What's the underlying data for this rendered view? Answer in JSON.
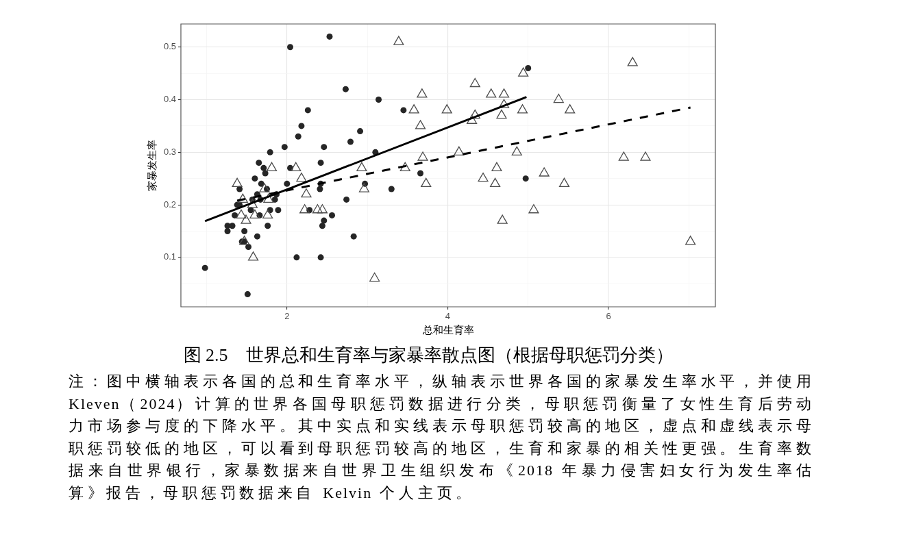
{
  "chart_data": {
    "type": "scatter",
    "title": "图 2.5　世界总和生育率与家暴率散点图（根据母职惩罚分类）",
    "xlabel": "总和生育率",
    "ylabel": "家暴发生率",
    "annotations": [
      "注：图中横轴表示各国的总和生育率水平，纵轴表示世界各国的家暴发生率水平，并使用Kleven（2024）计算的世界各国母职惩罚数据进行分类，母职惩罚衡量了女性生育后劳动力市场参与度的下降水平。其中实点和实线表示母职惩罚较高的地区，虚点和虚线表示母职惩罚较低的地区，可以看到母职惩罚较高的地区，生育和家暴的相关性更强。生育率数据来自世界银行，家暴数据来自世界卫生组织发布《2018 年暴力侵害妇女行为发生率估算》报告，母职惩罚数据来自 Kelvin 个人主页。"
    ],
    "xlim": [
      0.68,
      7.33
    ],
    "ylim": [
      0.006,
      0.544
    ],
    "xticks": [
      {
        "value": 1,
        "label": null
      },
      2,
      {
        "value": 3,
        "label": null
      },
      4,
      {
        "value": 5,
        "label": null
      },
      6,
      {
        "value": 7,
        "label": null
      }
    ],
    "yticks": [
      {
        "value": 0.05,
        "label": null
      },
      0.1,
      {
        "value": 0.15,
        "label": null
      },
      0.2,
      {
        "value": 0.25,
        "label": null
      },
      0.3,
      {
        "value": 0.35,
        "label": null
      },
      0.4,
      {
        "value": 0.45,
        "label": null
      },
      0.5
    ],
    "grid": true,
    "series": [
      {
        "type": "scatter",
        "color": "#262626",
        "marker": "circle",
        "x": [
          2.04,
          2.53,
          2.26,
          2.18,
          2.14,
          1.97,
          2.46,
          1.79,
          2.79,
          1.65,
          2.42,
          1.71,
          2.04,
          1.73,
          1.6,
          1.68,
          2.0,
          2.42,
          1.41,
          1.75,
          2.41,
          1.63,
          1.87,
          1.57,
          1.67,
          1.85,
          2.74,
          1.38,
          1.41,
          1.55,
          1.79,
          1.89,
          2.28,
          1.35,
          1.66,
          2.56,
          2.46,
          1.26,
          1.32,
          1.76,
          2.44,
          1.26,
          1.47,
          1.63,
          2.83,
          1.44,
          1.47,
          1.52,
          2.12,
          2.42,
          0.98,
          1.51,
          2.73,
          3.14,
          3.45,
          2.91,
          3.1,
          3.66,
          2.97,
          3.3,
          5.0,
          4.97
        ],
        "values": [
          0.5,
          0.52,
          0.38,
          0.35,
          0.33,
          0.31,
          0.31,
          0.3,
          0.32,
          0.28,
          0.28,
          0.27,
          0.27,
          0.26,
          0.25,
          0.24,
          0.24,
          0.24,
          0.23,
          0.23,
          0.23,
          0.22,
          0.22,
          0.21,
          0.21,
          0.21,
          0.21,
          0.2,
          0.2,
          0.19,
          0.19,
          0.19,
          0.19,
          0.18,
          0.18,
          0.18,
          0.17,
          0.16,
          0.16,
          0.16,
          0.16,
          0.15,
          0.15,
          0.14,
          0.14,
          0.13,
          0.13,
          0.12,
          0.1,
          0.1,
          0.08,
          0.03,
          0.42,
          0.4,
          0.38,
          0.34,
          0.3,
          0.26,
          0.24,
          0.23,
          0.46,
          0.25
        ]
      },
      {
        "type": "scatter",
        "color": "#4d4d4d",
        "marker": "triangle",
        "x": [
          1.81,
          2.11,
          2.18,
          2.24,
          1.38,
          1.72,
          1.45,
          1.77,
          1.57,
          1.43,
          1.6,
          1.76,
          1.49,
          2.22,
          2.38,
          2.44,
          1.58,
          1.47,
          3.39,
          4.34,
          4.94,
          3.68,
          4.54,
          4.7,
          3.58,
          3.99,
          4.93,
          4.7,
          4.34,
          4.67,
          4.3,
          3.66,
          4.14,
          4.86,
          3.69,
          2.93,
          3.47,
          4.61,
          4.44,
          3.73,
          4.59,
          2.96,
          4.68,
          3.09,
          5.38,
          5.52,
          6.3,
          6.19,
          6.46,
          5.2,
          5.45,
          5.07,
          7.02
        ],
        "values": [
          0.27,
          0.27,
          0.25,
          0.22,
          0.24,
          0.23,
          0.21,
          0.21,
          0.2,
          0.18,
          0.18,
          0.18,
          0.17,
          0.19,
          0.19,
          0.19,
          0.1,
          0.13,
          0.51,
          0.43,
          0.45,
          0.41,
          0.41,
          0.41,
          0.38,
          0.38,
          0.38,
          0.39,
          0.37,
          0.37,
          0.36,
          0.35,
          0.3,
          0.3,
          0.29,
          0.27,
          0.27,
          0.27,
          0.25,
          0.24,
          0.24,
          0.23,
          0.17,
          0.06,
          0.4,
          0.38,
          0.47,
          0.29,
          0.29,
          0.26,
          0.24,
          0.19,
          0.13
        ]
      },
      {
        "type": "line",
        "color": "#000000",
        "marker": "none",
        "line_style": "solid",
        "x": [
          0.98,
          4.98
        ],
        "values": [
          0.169,
          0.405
        ]
      },
      {
        "type": "line",
        "color": "#000000",
        "marker": "none",
        "line_style": "dashed",
        "x": [
          1.38,
          7.02
        ],
        "values": [
          0.208,
          0.385
        ]
      }
    ]
  }
}
